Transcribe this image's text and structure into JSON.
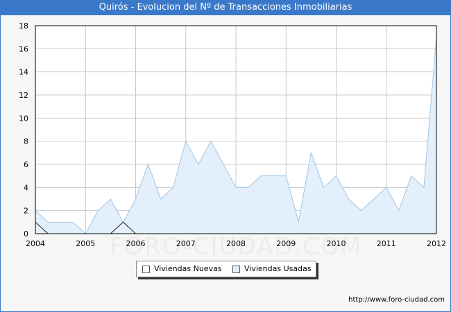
{
  "header": {
    "title": "Quirós - Evolucion del Nº de Transacciones Inmobiliarias"
  },
  "footer": {
    "url": "http://www.foro-ciudad.com"
  },
  "watermark": "FORO-CIUDAD.COM",
  "colors": {
    "header_bg": "#3a78c9",
    "usadas_fill": "#e3f0fb",
    "usadas_line": "#9fc3e6",
    "nuevas_line": "#222222",
    "grid": "#c8c8c8"
  },
  "legend": {
    "nuevas": "Viviendas Nuevas",
    "usadas": "Viviendas Usadas"
  },
  "chart_data": {
    "type": "area",
    "title": "Quirós - Evolucion del Nº de Transacciones Inmobiliarias",
    "xlabel": "",
    "ylabel": "",
    "xlim": [
      2004,
      2012
    ],
    "ylim": [
      0,
      18
    ],
    "x_ticks": [
      "2004",
      "2005",
      "2006",
      "2007",
      "2008",
      "2009",
      "2010",
      "2011",
      "2012"
    ],
    "y_ticks": [
      "0",
      "2",
      "4",
      "6",
      "8",
      "10",
      "12",
      "14",
      "16",
      "18"
    ],
    "grid": true,
    "legend_position": "bottom",
    "x": [
      2004,
      2004.25,
      2004.5,
      2004.75,
      2005,
      2005.25,
      2005.5,
      2005.75,
      2006,
      2006.25,
      2006.5,
      2006.75,
      2007,
      2007.25,
      2007.5,
      2007.75,
      2008,
      2008.25,
      2008.5,
      2008.75,
      2009,
      2009.25,
      2009.5,
      2009.75,
      2010,
      2010.25,
      2010.5,
      2010.75,
      2011,
      2011.25,
      2011.5,
      2011.75,
      2012
    ],
    "series": [
      {
        "name": "Viviendas Nuevas",
        "values": [
          1,
          0,
          0,
          0,
          0,
          0,
          0,
          1,
          0,
          0,
          0,
          0,
          0,
          0,
          0,
          0,
          0,
          0,
          0,
          0,
          0,
          0,
          0,
          0,
          0,
          0,
          0,
          0,
          0,
          0,
          0,
          0,
          0
        ]
      },
      {
        "name": "Viviendas Usadas",
        "values": [
          2,
          1,
          1,
          1,
          0,
          2,
          3,
          1,
          3,
          6,
          3,
          4,
          8,
          6,
          8,
          6,
          4,
          4,
          5,
          5,
          5,
          1,
          7,
          4,
          5,
          3,
          2,
          3,
          4,
          2,
          5,
          4,
          17
        ]
      }
    ]
  }
}
